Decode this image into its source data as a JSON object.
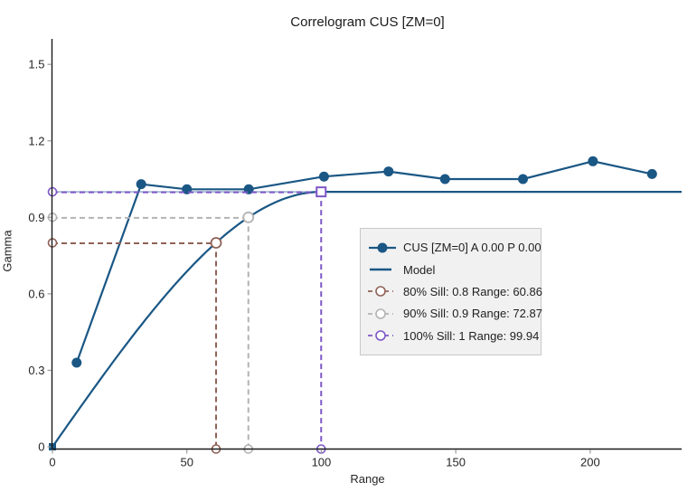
{
  "chart_data": {
    "type": "line",
    "title": "Correlogram CUS [ZM=0]",
    "xlabel": "Range",
    "ylabel": "Gamma",
    "xlim": [
      0,
      234
    ],
    "ylim": [
      0,
      1.6
    ],
    "xticks": [
      "0",
      "50",
      "100",
      "150",
      "200"
    ],
    "yticks": [
      "0",
      "0.3",
      "0.6",
      "0.9",
      "1.2",
      "1.5"
    ],
    "grid": false,
    "legend_position": "center-right",
    "series": [
      {
        "name": "CUS [ZM=0] A 0.00 P 0.00",
        "kind": "experimental-scatter-line",
        "color": "#1a5784",
        "points": [
          [
            9,
            0.33
          ],
          [
            33,
            1.03
          ],
          [
            50,
            1.01
          ],
          [
            73,
            1.01
          ],
          [
            101,
            1.06
          ],
          [
            125,
            1.08
          ],
          [
            146,
            1.05
          ],
          [
            175,
            1.05
          ],
          [
            201,
            1.12
          ],
          [
            223,
            1.07
          ]
        ]
      },
      {
        "name": "Model",
        "kind": "spherical-model",
        "color": "#1a5784",
        "sill": 1.0,
        "range": 99.94
      }
    ],
    "sill_reference": {
      "value": 1.0,
      "color": "#a3bad1"
    },
    "sill_annotations": [
      {
        "label": "80% Sill: 0.8 Range: 60.86",
        "sill": 0.8,
        "range": 60.86,
        "color": "#8f6257",
        "marker": "circle"
      },
      {
        "label": "90% Sill: 0.9 Range: 72.87",
        "sill": 0.9,
        "range": 72.87,
        "color": "#b3b3b3",
        "marker": "circle"
      },
      {
        "label": "100% Sill: 1 Range: 99.94",
        "sill": 1.0,
        "range": 99.94,
        "color": "#7d58c6",
        "marker": "square"
      }
    ],
    "axis_color": "#1a1a1a",
    "tick_color": "#9a9a9a",
    "tick_label_color": "#262626"
  },
  "legend": {
    "items": [
      {
        "label": "CUS [ZM=0] A 0.00 P 0.00",
        "marker": "filled-dot-line",
        "color": "#1a5784"
      },
      {
        "label": "Model",
        "marker": "line",
        "color": "#1a5784"
      },
      {
        "label": "80% Sill: 0.8 Range: 60.86",
        "marker": "open-circle-dash",
        "color": "#8f6257"
      },
      {
        "label": "90% Sill: 0.9 Range: 72.87",
        "marker": "open-circle-dash",
        "color": "#b3b3b3"
      },
      {
        "label": "100% Sill: 1 Range: 99.94",
        "marker": "open-circle-dash",
        "color": "#7d58c6"
      }
    ]
  }
}
